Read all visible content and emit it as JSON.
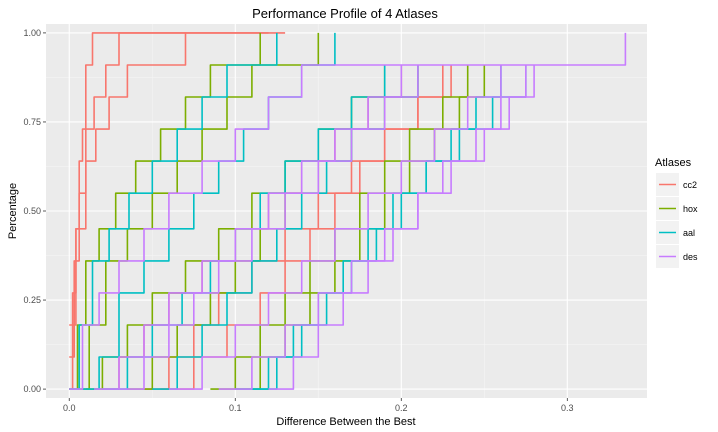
{
  "chart_data": {
    "type": "line",
    "title": "Performance Profile of 4 Atlases",
    "xlabel": "Difference Between the Best",
    "ylabel": "Percentage",
    "xlim": [
      -0.014,
      0.348
    ],
    "ylim": [
      -0.025,
      1.025
    ],
    "x_ticks": [
      0.0,
      0.1,
      0.2,
      0.3
    ],
    "x_tick_labels": [
      "0.0",
      "0.1",
      "0.2",
      "0.3"
    ],
    "y_ticks": [
      0.0,
      0.25,
      0.5,
      0.75,
      1.0
    ],
    "y_tick_labels": [
      "0.00",
      "0.25",
      "0.50",
      "0.75",
      "1.00"
    ],
    "grid": true,
    "legend": {
      "title": "Atlases",
      "position": "right"
    },
    "series": [
      {
        "name": "cc2",
        "color": "#F8766D",
        "curves": [
          {
            "x": [
              0.0,
              0.002,
              0.004,
              0.006,
              0.008,
              0.01,
              0.014,
              0.02,
              0.035,
              0.05,
              0.07
            ],
            "y": [
              0.0,
              0.27,
              0.45,
              0.64,
              0.73,
              0.91,
              1.0,
              1.0,
              1.0,
              1.0,
              1.0
            ]
          },
          {
            "x": [
              0.0,
              0.003,
              0.006,
              0.01,
              0.015,
              0.022,
              0.03,
              0.05,
              0.08,
              0.1,
              0.12
            ],
            "y": [
              0.09,
              0.36,
              0.55,
              0.73,
              0.82,
              0.91,
              1.0,
              1.0,
              1.0,
              1.0,
              1.0
            ]
          },
          {
            "x": [
              0.0,
              0.004,
              0.01,
              0.016,
              0.024,
              0.035,
              0.05,
              0.07,
              0.09,
              0.11,
              0.13
            ],
            "y": [
              0.18,
              0.45,
              0.64,
              0.73,
              0.82,
              0.91,
              0.91,
              1.0,
              1.0,
              1.0,
              1.0
            ]
          },
          {
            "x": [
              0.02,
              0.03,
              0.045,
              0.06,
              0.08,
              0.1,
              0.12,
              0.14,
              0.16,
              0.18,
              0.2
            ],
            "y": [
              0.0,
              0.09,
              0.18,
              0.27,
              0.36,
              0.45,
              0.55,
              0.64,
              0.73,
              0.82,
              0.91
            ]
          },
          {
            "x": [
              0.045,
              0.06,
              0.075,
              0.09,
              0.11,
              0.13,
              0.15,
              0.17,
              0.19,
              0.21,
              0.23
            ],
            "y": [
              0.0,
              0.09,
              0.18,
              0.27,
              0.36,
              0.45,
              0.55,
              0.64,
              0.73,
              0.82,
              0.91
            ]
          },
          {
            "x": [
              0.055,
              0.075,
              0.095,
              0.115,
              0.13,
              0.145,
              0.16,
              0.175,
              0.19,
              0.21,
              0.225
            ],
            "y": [
              0.0,
              0.09,
              0.18,
              0.27,
              0.36,
              0.45,
              0.55,
              0.64,
              0.73,
              0.82,
              0.91
            ]
          }
        ]
      },
      {
        "name": "hox",
        "color": "#7CAE00",
        "curves": [
          {
            "x": [
              0.0,
              0.005,
              0.01,
              0.018,
              0.028,
              0.04,
              0.055,
              0.07,
              0.085,
              0.1,
              0.115
            ],
            "y": [
              0.0,
              0.18,
              0.36,
              0.45,
              0.55,
              0.64,
              0.73,
              0.82,
              0.91,
              0.91,
              1.0
            ]
          },
          {
            "x": [
              0.005,
              0.012,
              0.022,
              0.035,
              0.05,
              0.065,
              0.08,
              0.095,
              0.11,
              0.13,
              0.15
            ],
            "y": [
              0.0,
              0.18,
              0.36,
              0.45,
              0.55,
              0.64,
              0.73,
              0.82,
              0.91,
              0.91,
              1.0
            ]
          },
          {
            "x": [
              0.01,
              0.02,
              0.035,
              0.05,
              0.07,
              0.09,
              0.11,
              0.13,
              0.15,
              0.17,
              0.19
            ],
            "y": [
              0.0,
              0.09,
              0.18,
              0.27,
              0.36,
              0.45,
              0.55,
              0.64,
              0.73,
              0.82,
              0.91
            ]
          },
          {
            "x": [
              0.035,
              0.05,
              0.065,
              0.085,
              0.1,
              0.115,
              0.13,
              0.15,
              0.17,
              0.19,
              0.21
            ],
            "y": [
              0.0,
              0.09,
              0.18,
              0.27,
              0.36,
              0.45,
              0.55,
              0.64,
              0.73,
              0.82,
              0.91
            ]
          },
          {
            "x": [
              0.085,
              0.1,
              0.115,
              0.13,
              0.145,
              0.16,
              0.175,
              0.19,
              0.205,
              0.225,
              0.24
            ],
            "y": [
              0.0,
              0.09,
              0.18,
              0.27,
              0.36,
              0.45,
              0.55,
              0.64,
              0.73,
              0.82,
              0.91
            ]
          },
          {
            "x": [
              0.1,
              0.115,
              0.13,
              0.145,
              0.16,
              0.175,
              0.19,
              0.205,
              0.22,
              0.235,
              0.25
            ],
            "y": [
              0.0,
              0.09,
              0.18,
              0.27,
              0.36,
              0.45,
              0.55,
              0.64,
              0.73,
              0.82,
              0.91
            ]
          }
        ]
      },
      {
        "name": "aal",
        "color": "#00BFC4",
        "curves": [
          {
            "x": [
              0.0,
              0.006,
              0.014,
              0.024,
              0.036,
              0.05,
              0.065,
              0.08,
              0.095,
              0.11,
              0.125
            ],
            "y": [
              0.0,
              0.18,
              0.36,
              0.45,
              0.55,
              0.64,
              0.73,
              0.82,
              0.91,
              0.91,
              1.0
            ]
          },
          {
            "x": [
              0.008,
              0.018,
              0.03,
              0.045,
              0.06,
              0.075,
              0.09,
              0.105,
              0.12,
              0.14,
              0.16
            ],
            "y": [
              0.0,
              0.09,
              0.27,
              0.36,
              0.45,
              0.55,
              0.64,
              0.73,
              0.82,
              0.91,
              1.0
            ]
          },
          {
            "x": [
              0.02,
              0.035,
              0.05,
              0.068,
              0.085,
              0.1,
              0.115,
              0.13,
              0.15,
              0.17,
              0.19
            ],
            "y": [
              0.0,
              0.09,
              0.18,
              0.27,
              0.36,
              0.45,
              0.55,
              0.64,
              0.73,
              0.82,
              0.91
            ]
          },
          {
            "x": [
              0.05,
              0.065,
              0.08,
              0.095,
              0.11,
              0.125,
              0.14,
              0.155,
              0.17,
              0.19,
              0.21
            ],
            "y": [
              0.0,
              0.09,
              0.18,
              0.27,
              0.36,
              0.45,
              0.55,
              0.64,
              0.73,
              0.82,
              0.91
            ]
          },
          {
            "x": [
              0.11,
              0.125,
              0.14,
              0.155,
              0.17,
              0.185,
              0.2,
              0.215,
              0.23,
              0.245,
              0.26
            ],
            "y": [
              0.0,
              0.09,
              0.18,
              0.27,
              0.36,
              0.45,
              0.55,
              0.64,
              0.73,
              0.82,
              0.91
            ]
          },
          {
            "x": [
              0.1,
              0.12,
              0.135,
              0.15,
              0.165,
              0.18,
              0.195,
              0.215,
              0.235,
              0.255,
              0.275
            ],
            "y": [
              0.0,
              0.09,
              0.18,
              0.27,
              0.36,
              0.45,
              0.55,
              0.64,
              0.73,
              0.82,
              0.91
            ]
          }
        ]
      },
      {
        "name": "des",
        "color": "#C77CFF",
        "curves": [
          {
            "x": [
              0.0,
              0.008,
              0.018,
              0.03,
              0.045,
              0.06,
              0.08,
              0.1,
              0.12,
              0.14,
              0.335
            ],
            "y": [
              0.0,
              0.18,
              0.27,
              0.36,
              0.45,
              0.55,
              0.64,
              0.73,
              0.82,
              0.91,
              1.0
            ]
          },
          {
            "x": [
              0.015,
              0.03,
              0.045,
              0.06,
              0.08,
              0.1,
              0.12,
              0.14,
              0.16,
              0.18,
              0.2
            ],
            "y": [
              0.0,
              0.09,
              0.18,
              0.27,
              0.36,
              0.45,
              0.55,
              0.64,
              0.73,
              0.82,
              0.91
            ]
          },
          {
            "x": [
              0.03,
              0.045,
              0.06,
              0.075,
              0.09,
              0.11,
              0.13,
              0.15,
              0.17,
              0.19,
              0.21
            ],
            "y": [
              0.0,
              0.09,
              0.18,
              0.27,
              0.36,
              0.45,
              0.55,
              0.64,
              0.73,
              0.82,
              0.91
            ]
          },
          {
            "x": [
              0.06,
              0.08,
              0.1,
              0.12,
              0.14,
              0.16,
              0.18,
              0.2,
              0.22,
              0.24,
              0.26
            ],
            "y": [
              0.0,
              0.09,
              0.18,
              0.27,
              0.36,
              0.45,
              0.55,
              0.64,
              0.73,
              0.82,
              0.91
            ]
          },
          {
            "x": [
              0.12,
              0.135,
              0.15,
              0.165,
              0.18,
              0.195,
              0.21,
              0.225,
              0.245,
              0.26,
              0.275
            ],
            "y": [
              0.0,
              0.09,
              0.18,
              0.27,
              0.36,
              0.45,
              0.55,
              0.64,
              0.73,
              0.82,
              0.91
            ]
          },
          {
            "x": [
              0.09,
              0.11,
              0.13,
              0.15,
              0.17,
              0.19,
              0.21,
              0.23,
              0.25,
              0.265,
              0.28
            ],
            "y": [
              0.0,
              0.09,
              0.18,
              0.27,
              0.36,
              0.45,
              0.55,
              0.64,
              0.73,
              0.82,
              0.91
            ]
          }
        ]
      }
    ]
  }
}
